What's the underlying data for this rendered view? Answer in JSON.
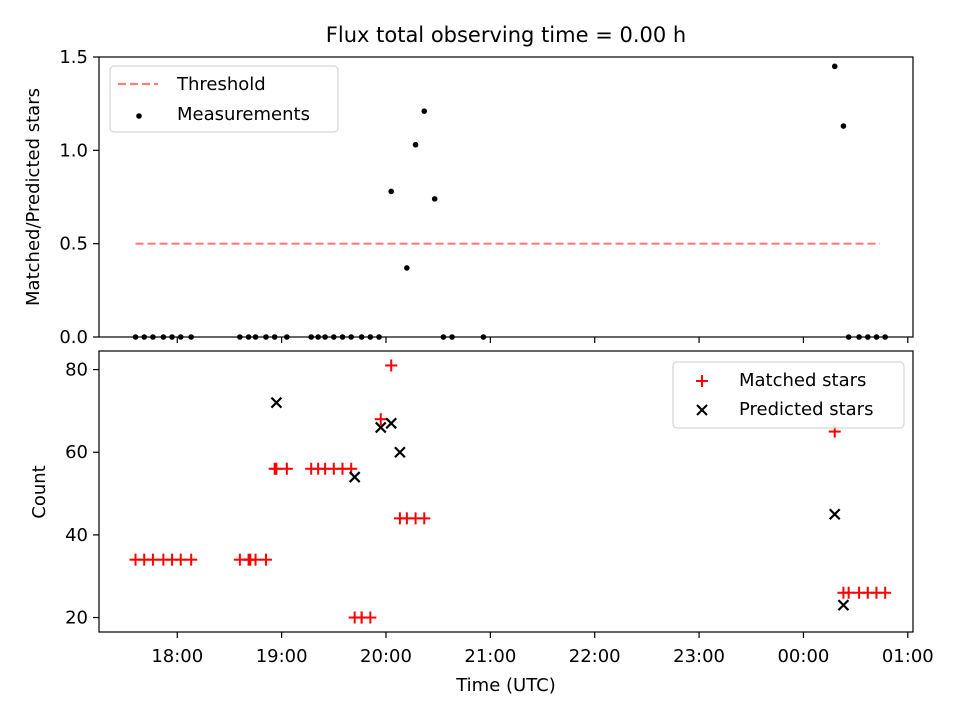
{
  "title": "Flux total observing time = 0.00 h",
  "chart_data": [
    {
      "type": "scatter",
      "panel": "top",
      "ylabel": "Matched/Predicted stars",
      "ylim": [
        0,
        1.5
      ],
      "yticks": [
        "0.0",
        "0.5",
        "1.0",
        "1.5"
      ],
      "threshold": {
        "name": "Threshold",
        "y": 0.5,
        "x_range": [
          "17:36",
          "24:44"
        ],
        "color": "#ff7f7f"
      },
      "legend": {
        "placement": "top-left",
        "entries": [
          "Threshold",
          "Measurements"
        ]
      },
      "series": [
        {
          "name": "Measurements",
          "color": "#000000",
          "x": [
            "17:36",
            "17:41",
            "17:46",
            "17:52",
            "17:57",
            "18:02",
            "18:08",
            "18:36",
            "18:41",
            "18:45",
            "18:51",
            "18:56",
            "19:03",
            "19:17",
            "19:21",
            "19:25",
            "19:30",
            "19:35",
            "19:40",
            "19:46",
            "19:51",
            "19:56",
            "20:03",
            "20:12",
            "20:17",
            "20:22",
            "20:28",
            "20:33",
            "20:38",
            "20:56",
            "00:18",
            "00:23",
            "00:26",
            "00:32",
            "00:37",
            "00:42",
            "00:47"
          ],
          "y": [
            0,
            0,
            0,
            0,
            0,
            0,
            0,
            0,
            0,
            0,
            0,
            0,
            0,
            0,
            0,
            0,
            0,
            0,
            0,
            0,
            0,
            0,
            0.78,
            0.37,
            1.03,
            1.21,
            0.74,
            0,
            0,
            0,
            1.45,
            1.13,
            0,
            0,
            0,
            0,
            0
          ]
        }
      ]
    },
    {
      "type": "scatter",
      "panel": "bottom",
      "xlabel": "Time (UTC)",
      "ylabel": "Count",
      "xlim": [
        "17:15",
        "01:03"
      ],
      "xticks": [
        "18:00",
        "19:00",
        "20:00",
        "21:00",
        "22:00",
        "23:00",
        "00:00",
        "01:00"
      ],
      "ylim": [
        16.5,
        84.5
      ],
      "yticks": [
        "20",
        "40",
        "60",
        "80"
      ],
      "legend": {
        "placement": "top-right",
        "entries": [
          "Matched stars",
          "Predicted stars"
        ]
      },
      "series": [
        {
          "name": "Matched stars",
          "marker": "+",
          "color": "#ff0000",
          "x": [
            "17:36",
            "17:41",
            "17:46",
            "17:52",
            "17:57",
            "18:02",
            "18:08",
            "18:36",
            "18:41",
            "18:42",
            "18:45",
            "18:51",
            "18:56",
            "18:57",
            "19:03",
            "19:17",
            "19:21",
            "19:25",
            "19:30",
            "19:35",
            "19:40",
            "19:46",
            "19:42",
            "19:46",
            "19:51",
            "19:57",
            "20:03",
            "20:08",
            "20:12",
            "20:17",
            "20:22",
            "00:18",
            "00:23",
            "00:26",
            "00:32",
            "00:37",
            "00:42",
            "00:47"
          ],
          "y": [
            34,
            34,
            34,
            34,
            34,
            34,
            34,
            34,
            34,
            34,
            34,
            34,
            56,
            56,
            56,
            56,
            56,
            56,
            56,
            56,
            56,
            20,
            20,
            20,
            20,
            68,
            81,
            44,
            44,
            44,
            44,
            65,
            26,
            26,
            26,
            26,
            26,
            26
          ]
        },
        {
          "name": "Predicted stars",
          "marker": "x",
          "color": "#000000",
          "x": [
            "18:57",
            "19:42",
            "19:57",
            "20:03",
            "20:08",
            "00:18",
            "00:23"
          ],
          "y": [
            72,
            54,
            66,
            67,
            60,
            45,
            23
          ]
        }
      ]
    }
  ]
}
